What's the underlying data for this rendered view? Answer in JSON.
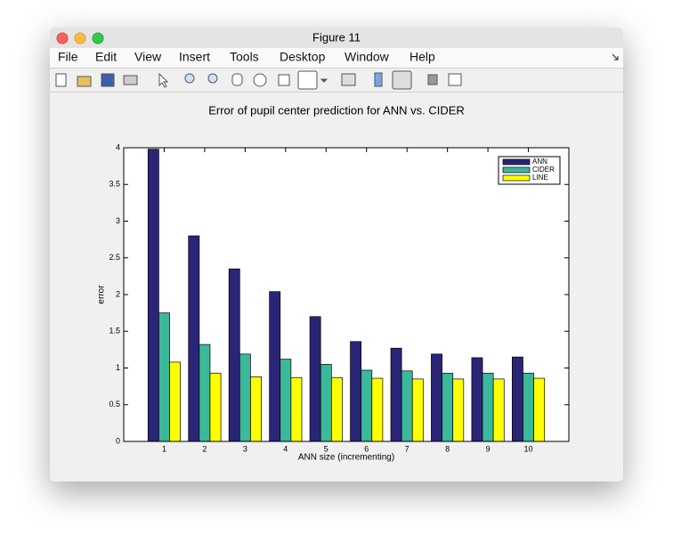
{
  "window": {
    "title": "Figure 11",
    "menu": [
      "File",
      "Edit",
      "View",
      "Insert",
      "Tools",
      "Desktop",
      "Window",
      "Help"
    ]
  },
  "chart_data": {
    "type": "bar",
    "title": "Error of pupil center prediction for ANN vs. CIDER",
    "xlabel": "ANN size (incrementing)",
    "ylabel": "error",
    "x": [
      1,
      2,
      3,
      4,
      5,
      6,
      7,
      8,
      9,
      10
    ],
    "xlim": [
      0,
      11
    ],
    "xticks": [
      1,
      2,
      3,
      4,
      5,
      6,
      7,
      8,
      9,
      10
    ],
    "ylim": [
      0,
      4
    ],
    "yticks": [
      0,
      0.5,
      1,
      1.5,
      2,
      2.5,
      3,
      3.5,
      4
    ],
    "grid": false,
    "legend": "northeast",
    "series": [
      {
        "name": "ANN",
        "color": "#2a2577",
        "values": [
          3.98,
          2.8,
          2.35,
          2.04,
          1.7,
          1.36,
          1.27,
          1.19,
          1.14,
          1.15
        ]
      },
      {
        "name": "CIDER",
        "color": "#3cb89a",
        "values": [
          1.75,
          1.32,
          1.19,
          1.12,
          1.05,
          0.97,
          0.96,
          0.93,
          0.93,
          0.93
        ]
      },
      {
        "name": "LINE",
        "color": "#ffff00",
        "values": [
          1.08,
          0.93,
          0.88,
          0.87,
          0.87,
          0.86,
          0.85,
          0.85,
          0.85,
          0.86
        ]
      }
    ]
  }
}
